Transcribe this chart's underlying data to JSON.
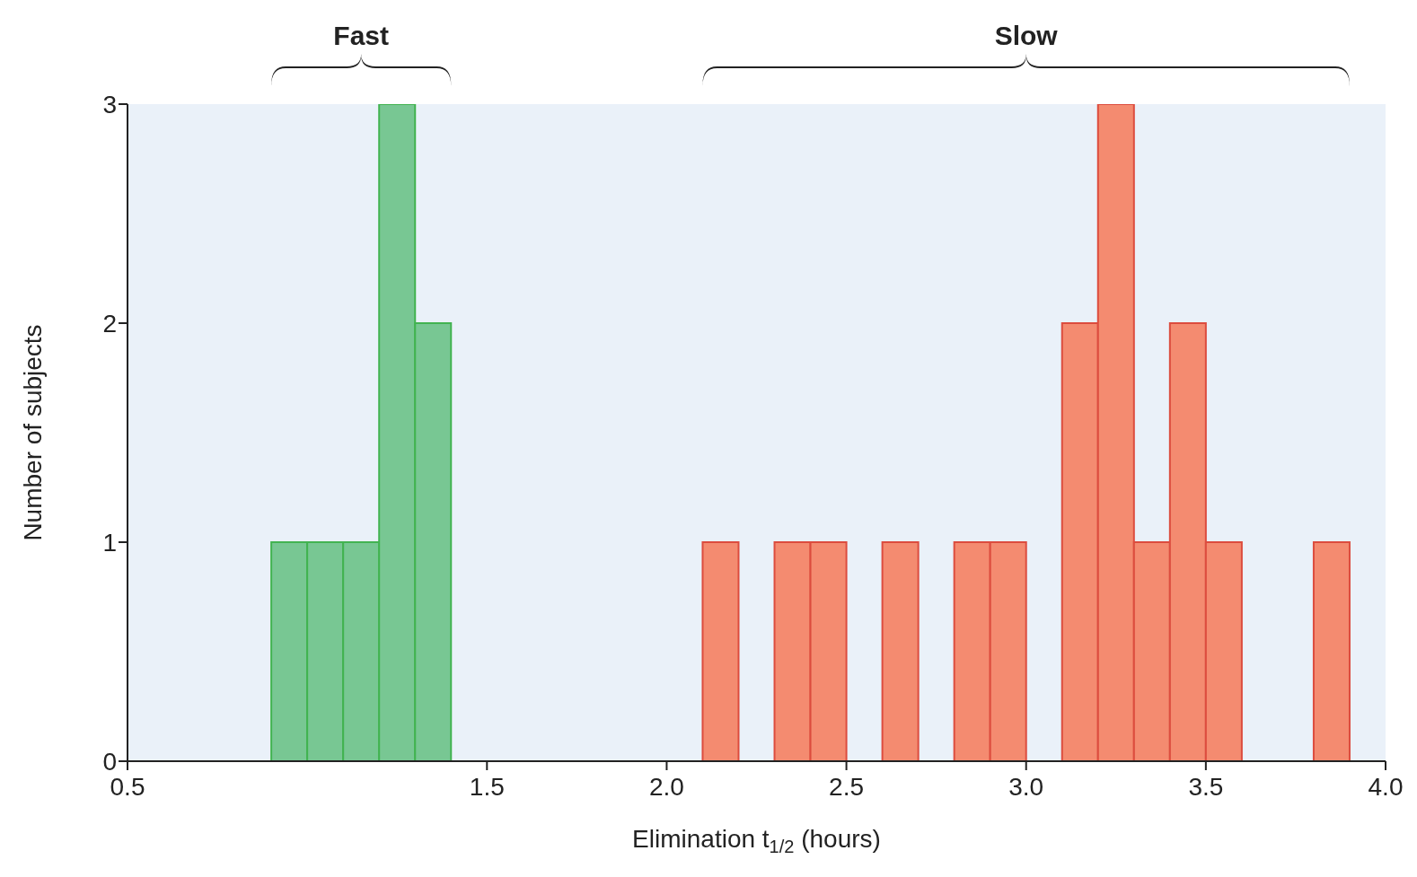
{
  "chart_data": {
    "type": "histogram",
    "xlabel": "Elimination t$_{1/2}$ (hours)",
    "ylabel": "Number of subjects",
    "bins": [
      0.9,
      1.0,
      1.1,
      1.2,
      1.3,
      1.4,
      1.5,
      1.6,
      1.7,
      1.8,
      1.9,
      2.0,
      2.1,
      2.2,
      2.3,
      2.4,
      2.5,
      2.6,
      2.7,
      2.8,
      2.9,
      3.0,
      3.1,
      3.2,
      3.3,
      3.4,
      3.5,
      3.6,
      3.7,
      3.8,
      3.9
    ],
    "values": [
      1,
      1,
      1,
      3,
      2,
      0,
      0,
      0,
      0,
      0,
      0,
      0,
      1,
      0,
      1,
      1,
      0,
      1,
      0,
      1,
      1,
      0,
      2,
      3,
      1,
      2,
      1,
      0,
      0,
      1
    ],
    "colors": [
      "#78c793",
      "#78c793",
      "#78c793",
      "#78c793",
      "#78c793",
      "#78c793",
      "#78c793",
      "#f48b70",
      "#f48b70",
      "#f48b70",
      "#f48b70",
      "#f48b70",
      "#f48b70",
      "#f48b70",
      "#f48b70",
      "#f48b70",
      "#f48b70",
      "#f48b70",
      "#f48b70",
      "#f48b70",
      "#f48b70",
      "#f48b70",
      "#f48b70",
      "#f48b70",
      "#f48b70",
      "#f48b70",
      "#f48b70",
      "#f48b70",
      "#f48b70",
      "#f48b70"
    ],
    "annotations": [
      "Fast",
      "Slow"
    ],
    "xlim": [
      0.5,
      4.0
    ],
    "xticks": [
      {
        "value": 0.5,
        "label": "0.5"
      },
      {
        "value": 1.5,
        "label": "1.5"
      },
      {
        "value": 2,
        "label": "2.0"
      },
      {
        "value": 2.5,
        "label": "2.5"
      },
      {
        "value": 3,
        "label": "3.0"
      },
      {
        "value": 3.5,
        "label": "3.5"
      },
      {
        "value": 4,
        "label": "4.0"
      }
    ],
    "ylim": [
      0,
      3
    ],
    "yticks": [
      0,
      1,
      2,
      3
    ]
  }
}
